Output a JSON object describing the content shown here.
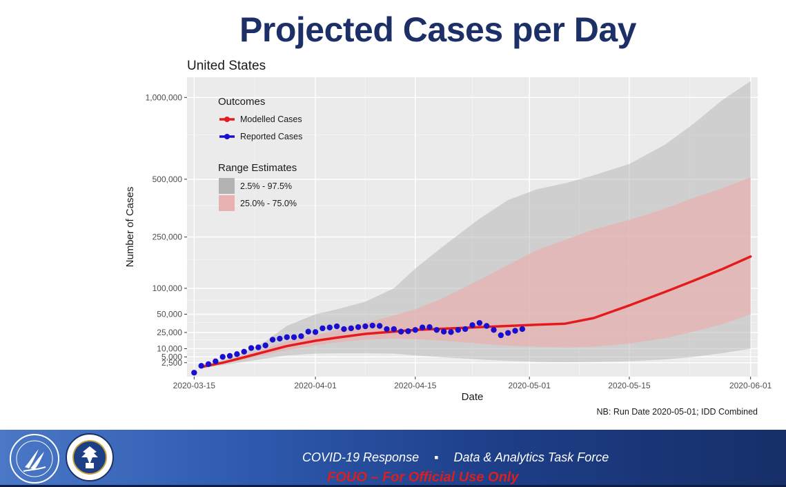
{
  "slide_title": "Projected Cases per Day",
  "chart_data": {
    "type": "line",
    "title": "United States",
    "xlabel": "Date",
    "ylabel": "Number of Cases",
    "y_scale": "sqrt",
    "ylim": [
      0,
      1150000
    ],
    "x_range_days": [
      -1,
      79
    ],
    "x_ticks": [
      {
        "day": 0,
        "label": "2020-03-15"
      },
      {
        "day": 17,
        "label": "2020-04-01"
      },
      {
        "day": 31,
        "label": "2020-04-15"
      },
      {
        "day": 47,
        "label": "2020-05-01"
      },
      {
        "day": 61,
        "label": "2020-05-15"
      },
      {
        "day": 78,
        "label": "2020-06-01"
      }
    ],
    "y_ticks": [
      {
        "value": 2500,
        "label": "2,500"
      },
      {
        "value": 5000,
        "label": "5,000"
      },
      {
        "value": 10000,
        "label": "10,000"
      },
      {
        "value": 25000,
        "label": "25,000"
      },
      {
        "value": 50000,
        "label": "50,000"
      },
      {
        "value": 100000,
        "label": "100,000"
      },
      {
        "value": 250000,
        "label": "250,000"
      },
      {
        "value": 500000,
        "label": "500,000"
      },
      {
        "value": 1000000,
        "label": "1,000,000"
      }
    ],
    "legend": {
      "position": "top-left",
      "outcomes_title": "Outcomes",
      "outcomes": [
        {
          "label": "Modelled Cases",
          "color": "#e41a1c"
        },
        {
          "label": "Reported Cases",
          "color": "#1a0fcf"
        }
      ],
      "ranges_title": "Range Estimates",
      "ranges": [
        {
          "label": "2.5% - 97.5%",
          "color": "#b3b3b3"
        },
        {
          "label": "25.0% - 75.0%",
          "color": "#e8b2b2"
        }
      ]
    },
    "note": "NB: Run Date 2020-05-01; IDD Combined",
    "x": [
      1,
      4,
      7,
      10,
      13,
      17,
      20,
      24,
      28,
      31,
      35,
      40,
      44,
      48,
      52,
      56,
      61,
      66,
      70,
      74,
      78
    ],
    "series": [
      {
        "name": "Modelled Cases",
        "color": "#e41a1c",
        "values": [
          1200,
          2500,
          4800,
          8000,
          12000,
          16500,
          19500,
          23500,
          26000,
          28000,
          29500,
          31500,
          33000,
          34500,
          36000,
          44000,
          65000,
          92000,
          118000,
          148000,
          185000
        ]
      },
      {
        "name": "Reported Cases",
        "color": "#1a0fcf",
        "x": [
          0,
          1,
          2,
          3,
          4,
          5,
          6,
          7,
          8,
          9,
          10,
          11,
          12,
          13,
          14,
          15,
          16,
          17,
          18,
          19,
          20,
          21,
          22,
          23,
          24,
          25,
          26,
          27,
          28,
          29,
          30,
          31,
          32,
          33,
          34,
          35,
          36,
          37,
          38,
          39,
          40,
          41,
          42,
          43,
          44,
          45,
          46
        ],
        "values": [
          200,
          1500,
          2000,
          3000,
          5000,
          5500,
          6500,
          8000,
          10500,
          11000,
          12500,
          17500,
          18500,
          20000,
          20000,
          21000,
          26000,
          25500,
          30000,
          31000,
          32500,
          29000,
          30000,
          31500,
          32500,
          33500,
          33000,
          29000,
          29000,
          26000,
          26500,
          28000,
          31000,
          31500,
          28000,
          26000,
          25500,
          28000,
          29000,
          34000,
          37000,
          33000,
          28000,
          22000,
          24500,
          27000,
          29000
        ]
      },
      {
        "name": "2.5% - 97.5%",
        "type": "band",
        "color": "#b3b3b3",
        "upper": [
          2000,
          3500,
          7500,
          16000,
          33000,
          50000,
          58000,
          72000,
          100000,
          150000,
          220000,
          320000,
          400000,
          450000,
          480000,
          520000,
          580000,
          690000,
          820000,
          980000,
          1120000
        ],
        "lower": [
          900,
          1700,
          2800,
          4200,
          5800,
          6800,
          7000,
          7000,
          6800,
          5800,
          4800,
          3800,
          3200,
          2800,
          2700,
          2800,
          3000,
          3800,
          5000,
          7000,
          10000
        ]
      },
      {
        "name": "25.0% - 75.0%",
        "type": "band",
        "color": "#e8b2b2",
        "upper": [
          1500,
          2900,
          5800,
          10000,
          16000,
          22000,
          28000,
          37000,
          48000,
          58000,
          80000,
          120000,
          160000,
          205000,
          240000,
          278000,
          315000,
          362000,
          410000,
          455000,
          510000
        ],
        "lower": [
          1000,
          2100,
          3800,
          6200,
          9000,
          12500,
          15000,
          17500,
          18500,
          18000,
          16500,
          14000,
          12200,
          11500,
          11000,
          11500,
          14000,
          19000,
          26000,
          35000,
          50000
        ]
      }
    ]
  },
  "footer": {
    "text_left": "COVID-19 Response",
    "separator": "▪",
    "text_right": "Data  & Analytics Task Force",
    "fouo": "FOUO – For Official Use Only"
  }
}
